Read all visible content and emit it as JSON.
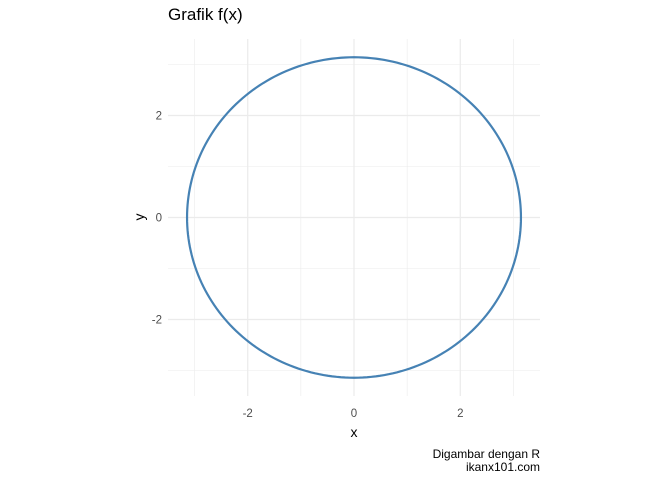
{
  "chart_data": {
    "type": "line",
    "title": "Grafik f(x)",
    "xlabel": "x",
    "ylabel": "y",
    "xlim": [
      -3.5,
      3.5
    ],
    "ylim": [
      -3.5,
      3.5
    ],
    "x_ticks": [
      -2,
      0,
      2
    ],
    "y_ticks": [
      -2,
      0,
      2
    ],
    "grid": true,
    "aspect": "equal",
    "series": [
      {
        "equation": "x^2 + y^2 = π^2",
        "radius": 3.14159,
        "center": [
          0,
          0
        ],
        "color": "#4682B4"
      }
    ],
    "caption": [
      "Digambar dengan R",
      "ikanx101.com"
    ]
  },
  "colors": {
    "background": "#ffffff",
    "grid": "#ebebeb",
    "line": "#4682B4",
    "tick_text": "#4d4d4d"
  }
}
